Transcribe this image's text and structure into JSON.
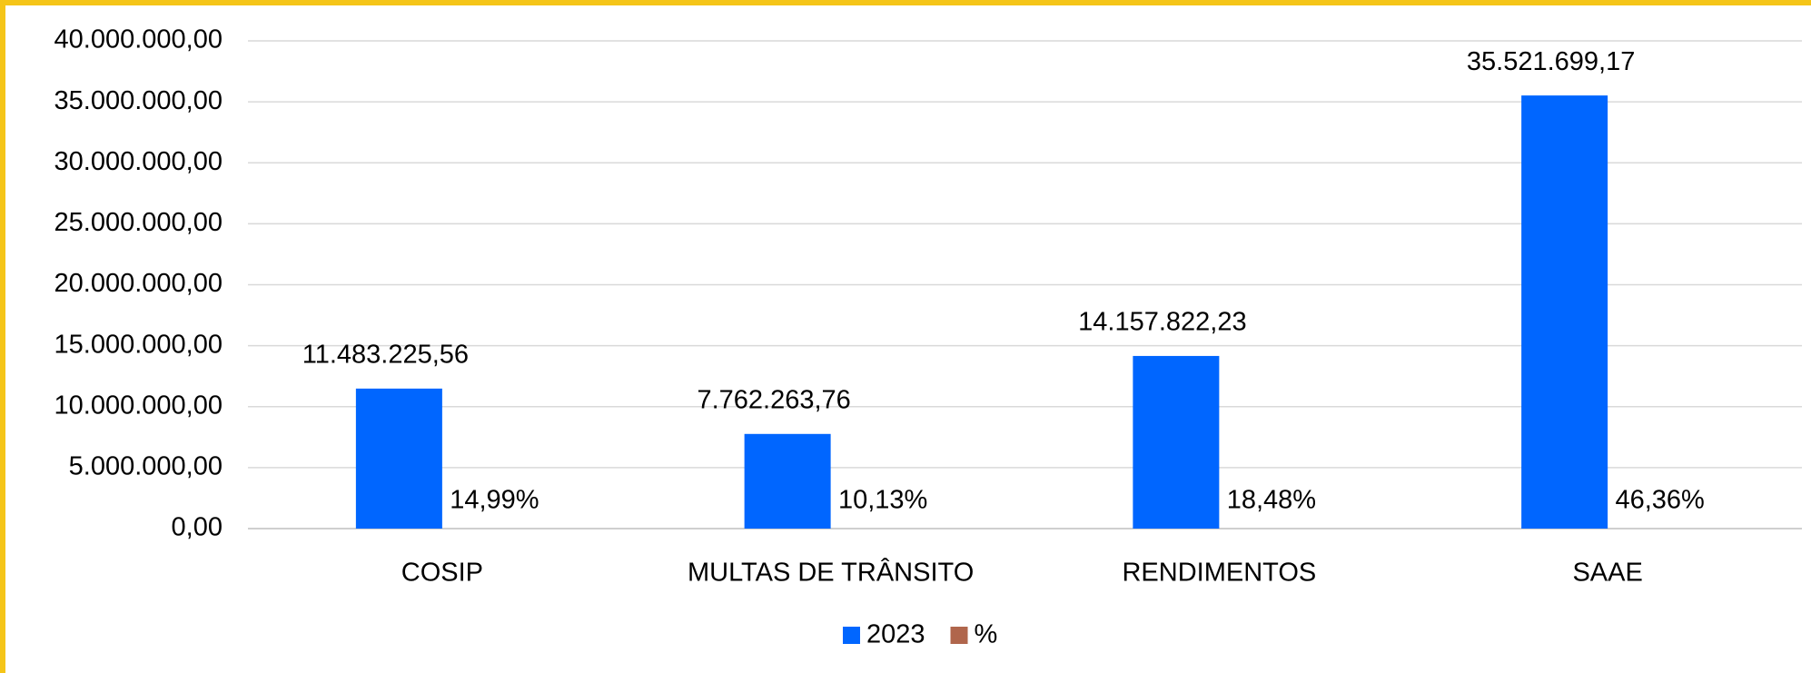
{
  "chart_data": {
    "type": "bar",
    "categories": [
      "COSIP",
      "MULTAS DE TRÂNSITO",
      "RENDIMENTOS",
      "SAAE"
    ],
    "series": [
      {
        "name": "2023",
        "color": "#0066ff",
        "values": [
          11483225.56,
          7762263.76,
          14157822.23,
          35521699.17
        ],
        "value_labels": [
          "11.483.225,56",
          "7.762.263,76",
          "14.157.822,23",
          "35.521.699,17"
        ]
      },
      {
        "name": "%",
        "color": "#b0664c",
        "values": [
          14.99,
          10.13,
          18.48,
          46.36
        ],
        "value_labels": [
          "14,99%",
          "10,13%",
          "18,48%",
          "46,36%"
        ]
      }
    ],
    "ylim": [
      0,
      40000000
    ],
    "yticks": [
      {
        "value": 0,
        "label": "0,00"
      },
      {
        "value": 5000000,
        "label": "5.000.000,00"
      },
      {
        "value": 10000000,
        "label": "10.000.000,00"
      },
      {
        "value": 15000000,
        "label": "15.000.000,00"
      },
      {
        "value": 20000000,
        "label": "20.000.000,00"
      },
      {
        "value": 25000000,
        "label": "25.000.000,00"
      },
      {
        "value": 30000000,
        "label": "30.000.000,00"
      },
      {
        "value": 35000000,
        "label": "35.000.000,00"
      },
      {
        "value": 40000000,
        "label": "40.000.000,00"
      }
    ],
    "grid": true,
    "legend": "bottom"
  }
}
